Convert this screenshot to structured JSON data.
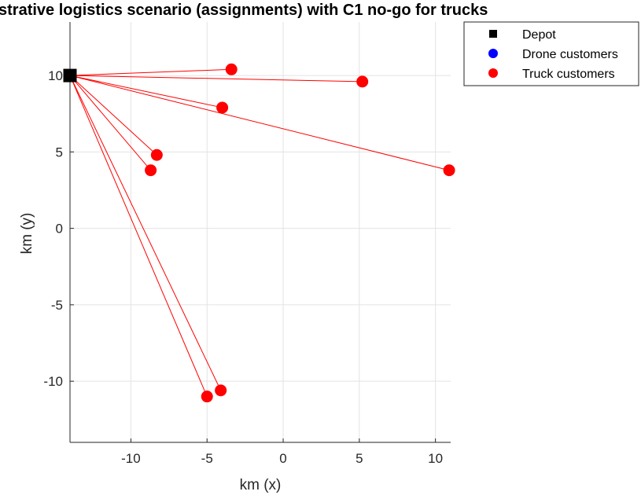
{
  "chart_data": {
    "type": "scatter",
    "title": "strative logistics scenario (assignments) with C1 no-go for trucks",
    "xlabel": "km (x)",
    "ylabel": "km (y)",
    "xlim": [
      -14,
      11
    ],
    "ylim": [
      -14,
      13.5
    ],
    "xticks": [
      -10,
      -5,
      0,
      5,
      10
    ],
    "yticks": [
      -10,
      -5,
      0,
      5,
      10
    ],
    "xtick_labels": [
      "-10",
      "-5",
      "0",
      "5",
      "10"
    ],
    "ytick_labels": [
      "-10",
      "-5",
      "0",
      "5",
      "10"
    ],
    "grid": true,
    "legend_position": "top-right",
    "depot": {
      "name": "Depot",
      "x": -14,
      "y": 10,
      "color": "#000000"
    },
    "series": [
      {
        "name": "Drone customers",
        "color": "#0000ff",
        "points": []
      },
      {
        "name": "Truck customers",
        "color": "#ff0000",
        "points": [
          {
            "x": -3.4,
            "y": 10.4
          },
          {
            "x": 5.2,
            "y": 9.6
          },
          {
            "x": -4.0,
            "y": 7.9
          },
          {
            "x": 10.9,
            "y": 3.8
          },
          {
            "x": -8.3,
            "y": 4.8
          },
          {
            "x": -8.7,
            "y": 3.8
          },
          {
            "x": -4.1,
            "y": -10.6
          },
          {
            "x": -5.0,
            "y": -11.0
          }
        ]
      }
    ],
    "legend": [
      {
        "label": "Depot",
        "marker": "square",
        "color": "#000000"
      },
      {
        "label": "Drone customers",
        "marker": "circle",
        "color": "#0000ff"
      },
      {
        "label": "Truck customers",
        "marker": "circle",
        "color": "#ff0000"
      }
    ]
  }
}
